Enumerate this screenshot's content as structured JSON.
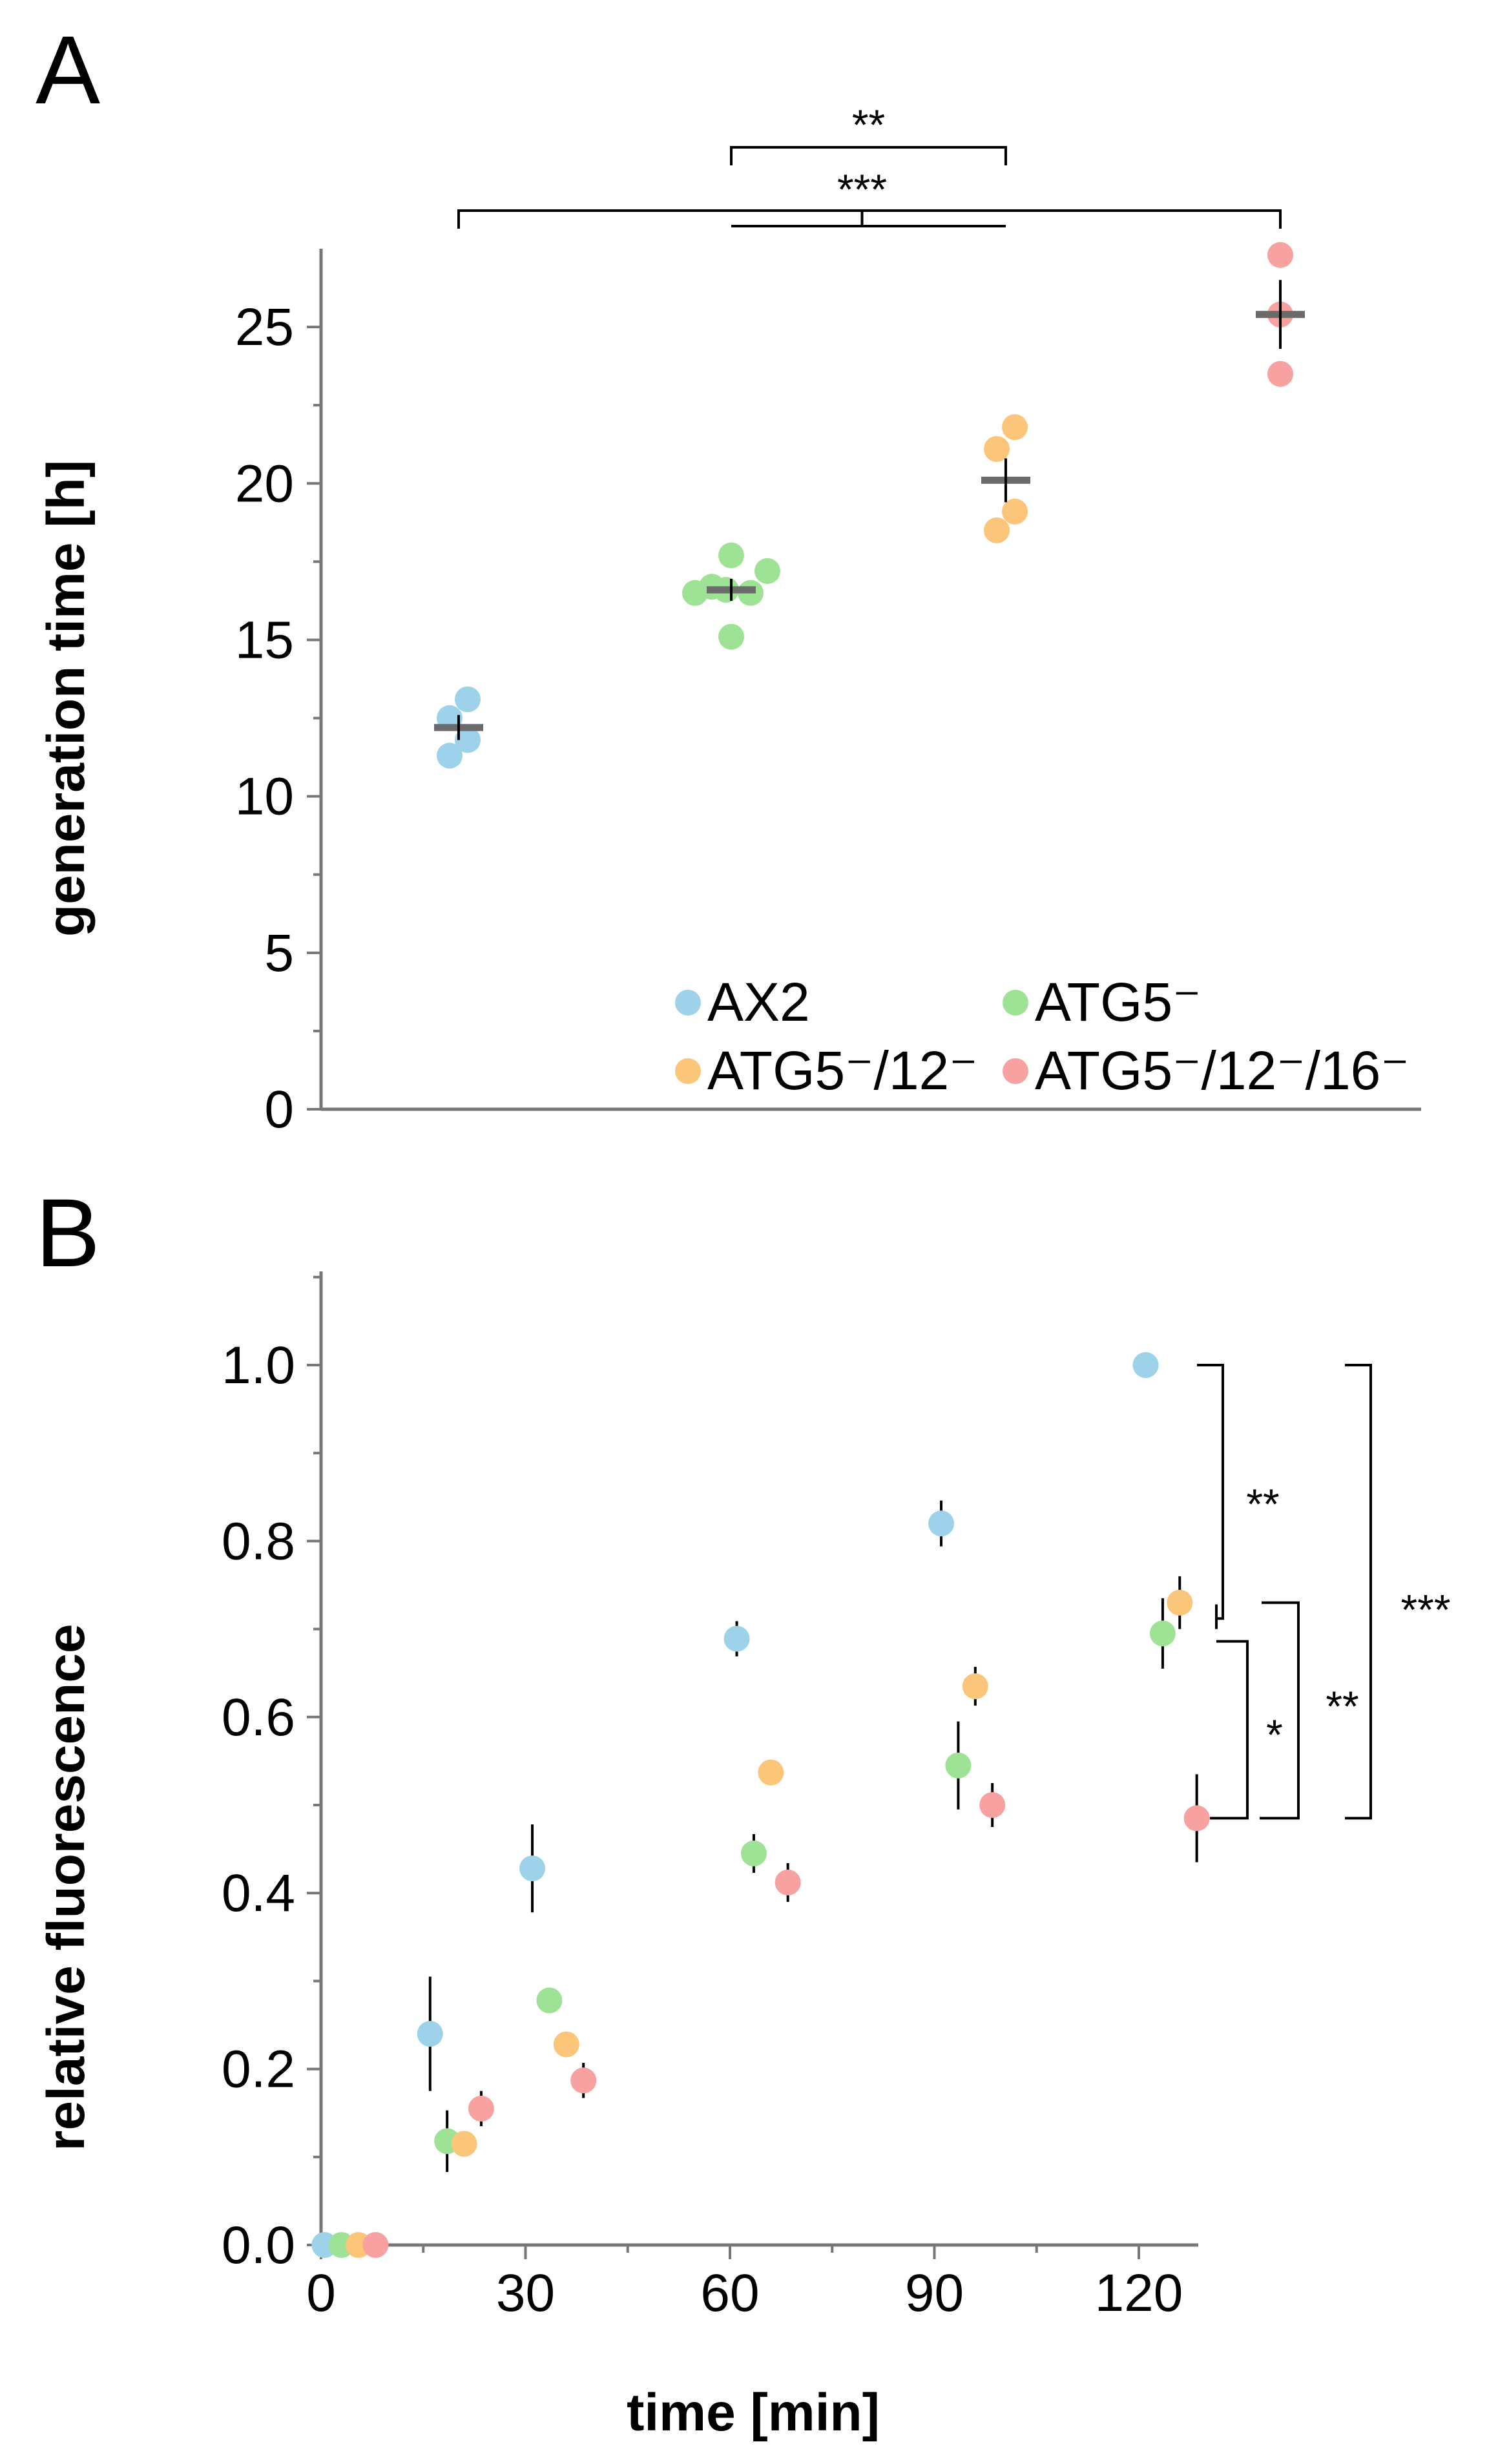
{
  "chart_data": [
    {
      "panel": "A",
      "type": "scatter",
      "ylabel": "generation time [h]",
      "ylim": [
        0,
        27.5
      ],
      "yticks": [
        0,
        5,
        10,
        15,
        20,
        25
      ],
      "ytick_labels": [
        "0",
        "5",
        "10",
        "15",
        "20",
        "25"
      ],
      "legend": [
        {
          "name": "AX2",
          "color": "#9ed2ea"
        },
        {
          "name": "ATG5⁻",
          "color": "#9ee395"
        },
        {
          "name": "ATG5⁻/12⁻",
          "color": "#fbc57a"
        },
        {
          "name": "ATG5⁻/12⁻/16⁻",
          "color": "#f8a1a1"
        }
      ],
      "groups": [
        {
          "name": "AX2",
          "color": "#9ed2ea",
          "mean": 12.2,
          "sem": 0.4,
          "points": [
            {
              "j": -0.35,
              "y": 12.5
            },
            {
              "j": 0.35,
              "y": 13.1
            },
            {
              "j": -0.35,
              "y": 11.3
            },
            {
              "j": 0.35,
              "y": 11.8
            }
          ]
        },
        {
          "name": "ATG5⁻",
          "color": "#9ee395",
          "mean": 16.6,
          "sem": 0.35,
          "points": [
            {
              "j": -1.4,
              "y": 16.5
            },
            {
              "j": -0.75,
              "y": 16.7
            },
            {
              "j": 0,
              "y": 17.7
            },
            {
              "j": 0.75,
              "y": 16.5
            },
            {
              "j": 1.4,
              "y": 17.2
            },
            {
              "j": 0,
              "y": 15.1
            },
            {
              "j": -0.2,
              "y": 16.6
            }
          ]
        },
        {
          "name": "ATG5⁻/12⁻",
          "color": "#fbc57a",
          "mean": 20.1,
          "sem": 0.7,
          "points": [
            {
              "j": -0.35,
              "y": 21.1
            },
            {
              "j": 0.35,
              "y": 21.8
            },
            {
              "j": 0.35,
              "y": 19.1
            },
            {
              "j": -0.35,
              "y": 18.5
            }
          ]
        },
        {
          "name": "ATG5⁻/12⁻/16⁻",
          "color": "#f8a1a1",
          "mean": 25.4,
          "sem": 1.1,
          "points": [
            {
              "j": 0,
              "y": 27.3
            },
            {
              "j": 0,
              "y": 25.4
            },
            {
              "j": 0,
              "y": 23.5
            }
          ]
        }
      ],
      "significance": [
        {
          "from": "ATG5⁻",
          "to": "ATG5⁻/12⁻",
          "label": "**"
        },
        {
          "from": "AX2",
          "to": "ATG5⁻/12⁻/16⁻",
          "label": "***"
        }
      ]
    },
    {
      "panel": "B",
      "type": "scatter",
      "xlabel": "time [min]",
      "ylabel": "relative fluorescence",
      "xlim": [
        0,
        128
      ],
      "ylim": [
        0,
        1.1
      ],
      "xticks": [
        0,
        30,
        60,
        90,
        120
      ],
      "xtick_labels": [
        "0",
        "30",
        "60",
        "90",
        "120"
      ],
      "yticks": [
        0.0,
        0.2,
        0.4,
        0.6,
        0.8,
        1.0
      ],
      "ytick_labels": [
        "0.0",
        "0.2",
        "0.4",
        "0.6",
        "0.8",
        "1.0"
      ],
      "series": [
        {
          "name": "AX2",
          "color": "#9ed2ea",
          "points": [
            {
              "x": 0.5,
              "y": 0.0,
              "err": 0
            },
            {
              "x": 16,
              "y": 0.24,
              "err": 0.065
            },
            {
              "x": 31,
              "y": 0.428,
              "err": 0.05
            },
            {
              "x": 61,
              "y": 0.689,
              "err": 0.02
            },
            {
              "x": 91,
              "y": 0.82,
              "err": 0.026
            },
            {
              "x": 121,
              "y": 1.0,
              "err": 0
            }
          ]
        },
        {
          "name": "ATG5⁻",
          "color": "#9ee395",
          "points": [
            {
              "x": 3,
              "y": 0.0,
              "err": 0
            },
            {
              "x": 18.5,
              "y": 0.118,
              "err": 0.035
            },
            {
              "x": 33.5,
              "y": 0.278,
              "err": 0.012
            },
            {
              "x": 63.5,
              "y": 0.445,
              "err": 0.022
            },
            {
              "x": 93.5,
              "y": 0.545,
              "err": 0.05
            },
            {
              "x": 123.5,
              "y": 0.695,
              "err": 0.04
            }
          ]
        },
        {
          "name": "ATG5⁻/12⁻",
          "color": "#fbc57a",
          "points": [
            {
              "x": 5.5,
              "y": 0.0,
              "err": 0
            },
            {
              "x": 21,
              "y": 0.115,
              "err": 0.01
            },
            {
              "x": 36,
              "y": 0.228,
              "err": 0.014
            },
            {
              "x": 66,
              "y": 0.537,
              "err": 0.01
            },
            {
              "x": 96,
              "y": 0.635,
              "err": 0.022
            },
            {
              "x": 126,
              "y": 0.73,
              "err": 0.03
            }
          ]
        },
        {
          "name": "ATG5⁻/12⁻/16⁻",
          "color": "#f8a1a1",
          "points": [
            {
              "x": 8,
              "y": 0.0,
              "err": 0
            },
            {
              "x": 23.5,
              "y": 0.155,
              "err": 0.02
            },
            {
              "x": 38.5,
              "y": 0.187,
              "err": 0.02
            },
            {
              "x": 68.5,
              "y": 0.412,
              "err": 0.022
            },
            {
              "x": 98.5,
              "y": 0.5,
              "err": 0.025
            },
            {
              "x": 128.5,
              "y": 0.485,
              "err": 0.05
            }
          ]
        }
      ],
      "significance": [
        {
          "from": "AX2",
          "to": "ATG5⁻ / ATG5⁻/12⁻",
          "label": "**"
        },
        {
          "from": "ATG5⁻ / ATG5⁻/12⁻",
          "to": "ATG5⁻/12⁻/16⁻",
          "label": "*"
        },
        {
          "from": "ATG5⁻ / ATG5⁻/12⁻",
          "to": "ATG5⁻/12⁻/16⁻",
          "label": "**"
        },
        {
          "from": "AX2",
          "to": "ATG5⁻/12⁻/16⁻",
          "label": "***"
        }
      ]
    }
  ],
  "panel_labels": {
    "a": "A",
    "b": "B"
  }
}
